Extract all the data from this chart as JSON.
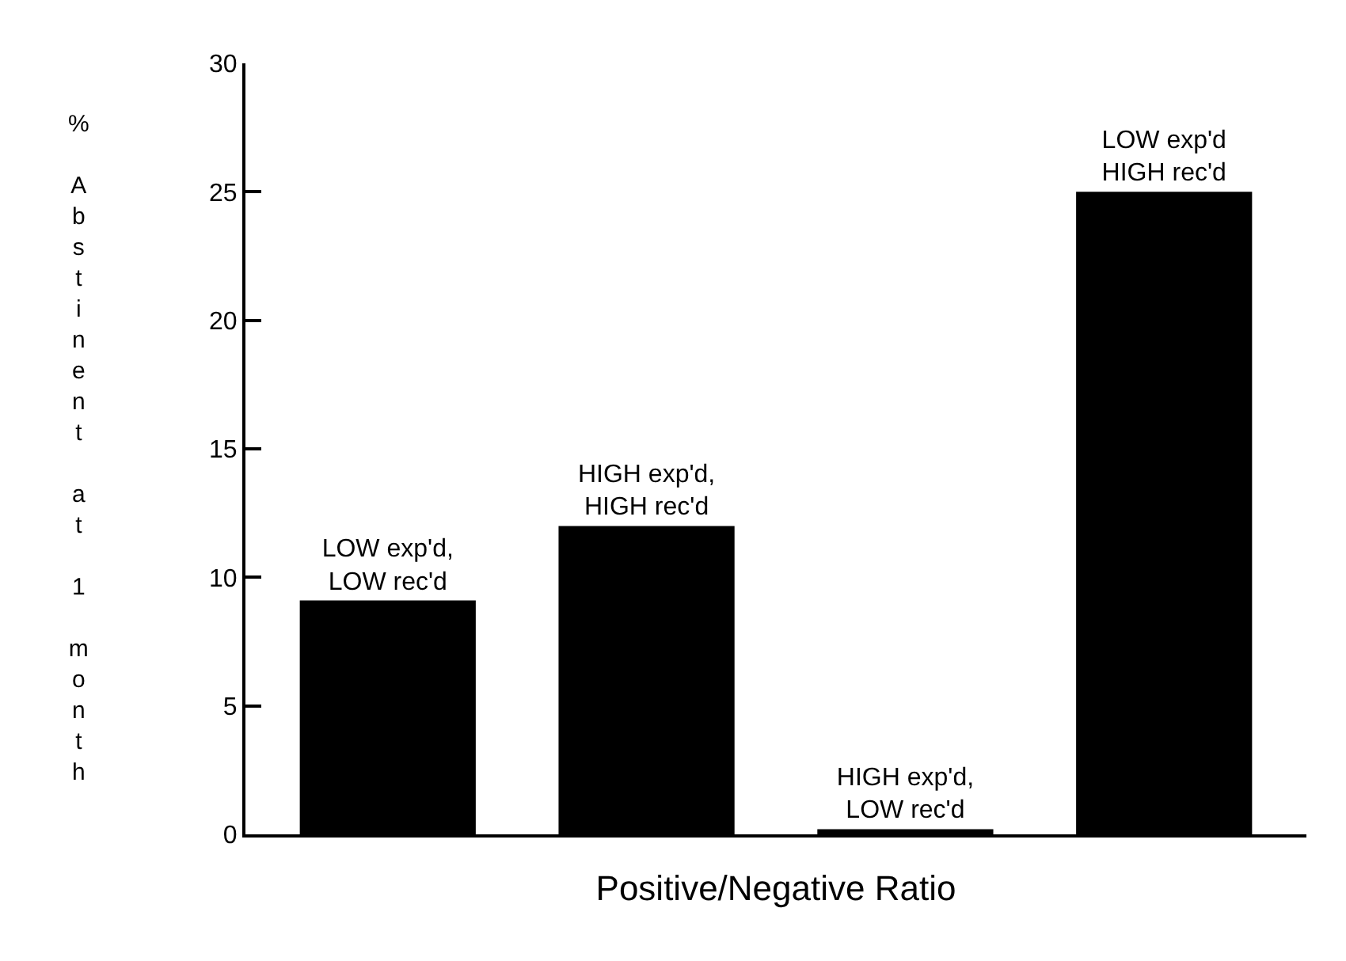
{
  "chart_data": {
    "type": "bar",
    "categories": [
      "LOW exp'd,\nLOW rec'd",
      "HIGH exp'd,\nHIGH rec'd",
      "HIGH exp'd,\nLOW rec'd",
      "LOW exp'd\nHIGH rec'd"
    ],
    "values": [
      9.1,
      12.0,
      0.2,
      25.0
    ],
    "color": "#000000",
    "xlabel": "Positive/Negative Ratio",
    "ylabel": "% Abstinent at 1 month",
    "ylim": [
      0,
      30
    ],
    "yticks": [
      0,
      5,
      10,
      15,
      20,
      25,
      30
    ],
    "legend": false,
    "tick_labels": "y"
  }
}
